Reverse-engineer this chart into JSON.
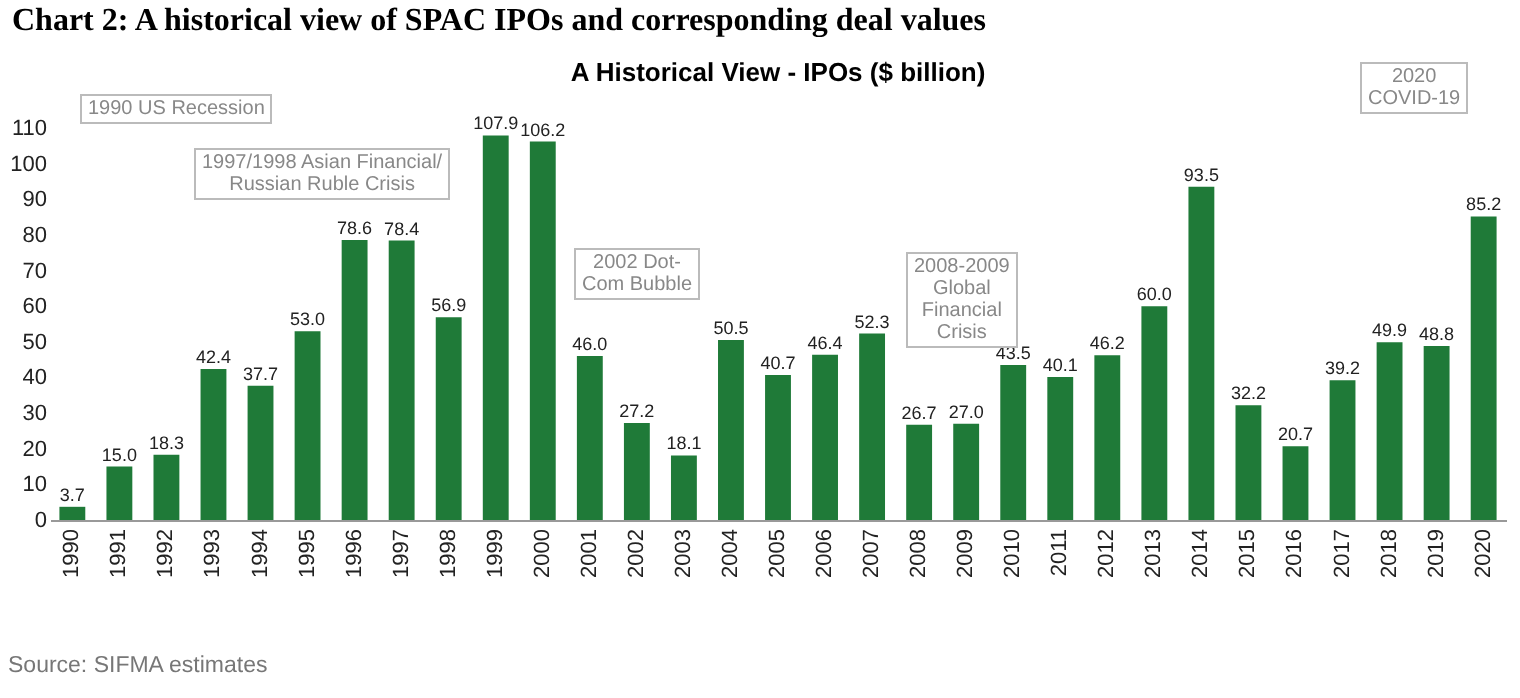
{
  "chart_data": {
    "type": "bar",
    "title": "Chart 2:  A historical view of SPAC IPOs and corresponding deal values",
    "subtitle": "A Historical View - IPOs ($ billion)",
    "categories": [
      "1990",
      "1991",
      "1992",
      "1993",
      "1994",
      "1995",
      "1996",
      "1997",
      "1998",
      "1999",
      "2000",
      "2001",
      "2002",
      "2003",
      "2004",
      "2005",
      "2006",
      "2007",
      "2008",
      "2009",
      "2010",
      "2011",
      "2012",
      "2013",
      "2014",
      "2015",
      "2016",
      "2017",
      "2018",
      "2019",
      "2020"
    ],
    "values": [
      3.7,
      15.0,
      18.3,
      42.4,
      37.7,
      53.0,
      78.6,
      78.4,
      56.9,
      107.9,
      106.2,
      46.0,
      27.2,
      18.1,
      50.5,
      40.7,
      46.4,
      52.3,
      26.7,
      27.0,
      43.5,
      40.1,
      46.2,
      60.0,
      93.5,
      32.2,
      20.7,
      39.2,
      49.9,
      48.8,
      85.2
    ],
    "value_labels": [
      "3.7",
      "15.0",
      "18.3",
      "42.4",
      "37.7",
      "53.0",
      "78.6",
      "78.4",
      "56.9",
      "107.9",
      "106.2",
      "46.0",
      "27.2",
      "18.1",
      "50.5",
      "40.7",
      "46.4",
      "52.3",
      "26.7",
      "27.0",
      "43.5",
      "40.1",
      "46.2",
      "60.0",
      "93.5",
      "32.2",
      "20.7",
      "39.2",
      "49.9",
      "48.8",
      "85.2"
    ],
    "color": "#1f7a38",
    "ylim": [
      0,
      110
    ],
    "yticks": [
      0,
      10,
      20,
      30,
      40,
      50,
      60,
      70,
      80,
      90,
      100,
      110
    ],
    "grid": false,
    "annotations": [
      "1990 US Recession",
      "1997/1998 Asian Financial/\nRussian Ruble Crisis",
      "2002 Dot-\nCom Bubble",
      "2008-2009\nGlobal\nFinancial\nCrisis",
      "2020\nCOVID-19",
      "Source: SIFMA estimates"
    ]
  }
}
